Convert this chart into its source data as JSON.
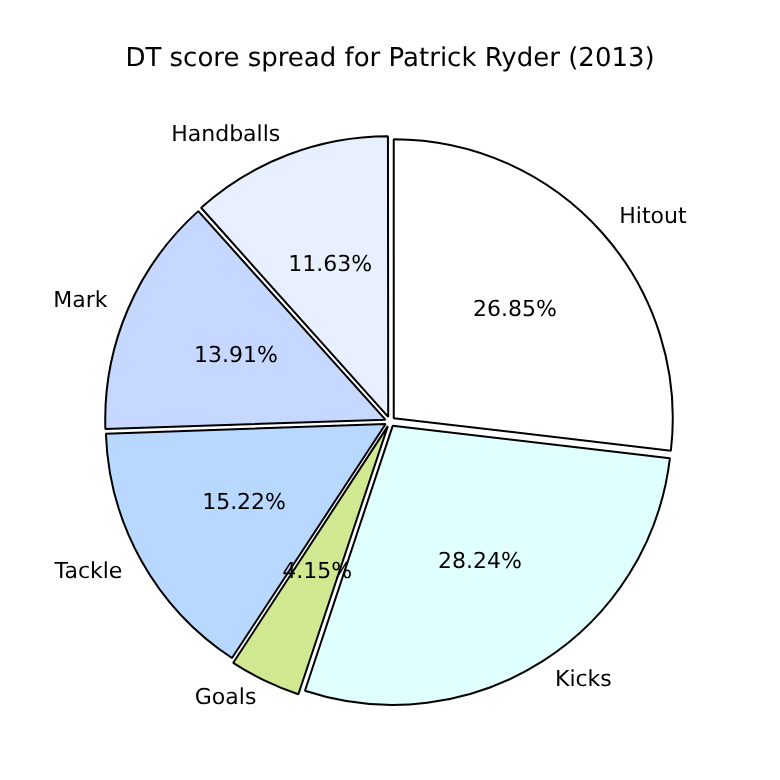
{
  "chart_data": {
    "type": "pie",
    "title": "DT score spread for Patrick Ryder (2013)",
    "categories": [
      "Hitout",
      "Kicks",
      "Goals",
      "Tackle",
      "Mark",
      "Handballs"
    ],
    "values": [
      26.85,
      28.24,
      4.15,
      15.22,
      13.91,
      11.63
    ],
    "colors": [
      "#ffffff",
      "#e0ffff",
      "#d0e890",
      "#b8d8ff",
      "#c6d8ff",
      "#e8f0ff"
    ],
    "value_labels": [
      "26.85%",
      "28.24%",
      "4.15%",
      "15.22%",
      "13.91%",
      "11.63%"
    ],
    "legend": false
  }
}
